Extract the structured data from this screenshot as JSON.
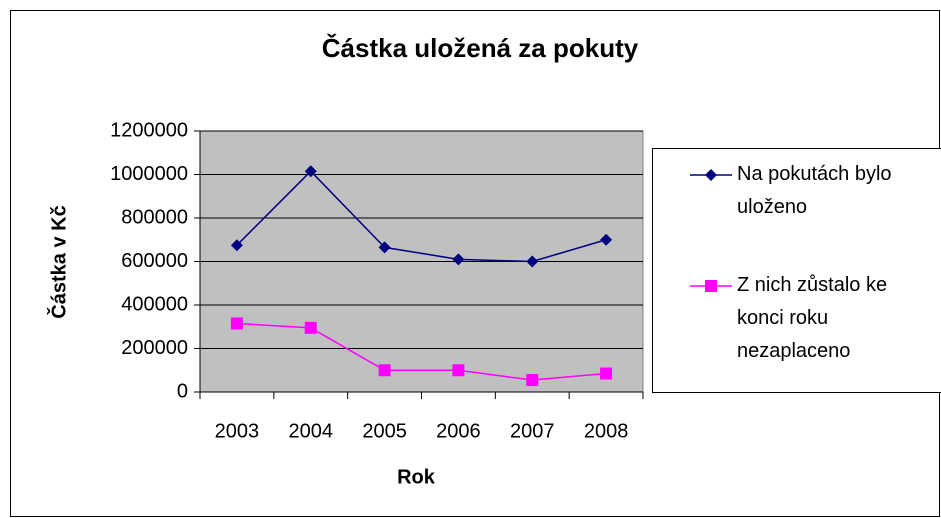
{
  "chart_data": {
    "type": "line",
    "title": "Částka uložená za pokuty",
    "x_label": "Rok",
    "y_label": "Částka v Kč",
    "categories": [
      "2003",
      "2004",
      "2005",
      "2006",
      "2007",
      "2008"
    ],
    "series": [
      {
        "name": "Na pokutách bylo uloženo",
        "color": "#000080",
        "marker": "diamond",
        "values": [
          675000,
          1015000,
          665000,
          610000,
          600000,
          700000
        ]
      },
      {
        "name": "Z nich zůstalo ke konci roku nezaplaceno",
        "color": "#ff00ff",
        "marker": "square",
        "values": [
          315000,
          295000,
          100000,
          100000,
          55000,
          85000
        ]
      }
    ],
    "ylim": [
      0,
      1200000
    ],
    "yticks": [
      0,
      200000,
      400000,
      600000,
      800000,
      1000000,
      1200000
    ],
    "grid": true,
    "legend": "right"
  }
}
